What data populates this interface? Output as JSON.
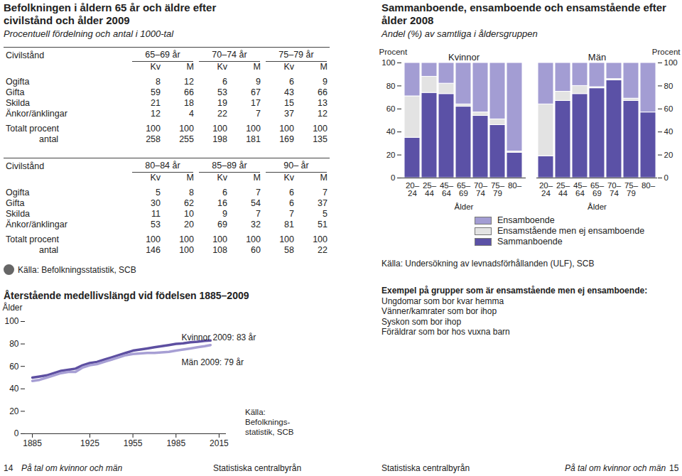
{
  "table": {
    "title": "Befolkningen i åldern 65 år och äldre efter civilstånd och ålder 2009",
    "subtitle": "Procentuell fördelning och antal i 1000-tal",
    "columns": [
      "Kv",
      "M"
    ],
    "blocks": [
      {
        "header_label": "Civilstånd",
        "groups": [
          "65–69 år",
          "70–74 år",
          "75–79 år"
        ],
        "rows": [
          {
            "label": "Ogifta",
            "values": [
              8,
              12,
              6,
              9,
              6,
              9
            ]
          },
          {
            "label": "Gifta",
            "values": [
              59,
              66,
              53,
              67,
              43,
              66
            ]
          },
          {
            "label": "Skilda",
            "values": [
              21,
              18,
              19,
              17,
              15,
              13
            ]
          },
          {
            "label": "Änkor/änklingar",
            "values": [
              12,
              4,
              22,
              7,
              37,
              12
            ]
          },
          {
            "label": "Totalt procent",
            "values": [
              100,
              100,
              100,
              100,
              100,
              100
            ]
          },
          {
            "label": "antal",
            "values": [
              258,
              255,
              198,
              181,
              169,
              135
            ]
          }
        ]
      },
      {
        "header_label": "Civilstånd",
        "groups": [
          "80–84 år",
          "85–89 år",
          "90– år"
        ],
        "rows": [
          {
            "label": "Ogifta",
            "values": [
              5,
              8,
              6,
              7,
              6,
              7
            ]
          },
          {
            "label": "Gifta",
            "values": [
              30,
              62,
              16,
              54,
              6,
              37
            ]
          },
          {
            "label": "Skilda",
            "values": [
              11,
              10,
              9,
              7,
              7,
              5
            ]
          },
          {
            "label": "Änkor/änklingar",
            "values": [
              53,
              20,
              69,
              32,
              81,
              51
            ]
          },
          {
            "label": "Totalt procent",
            "values": [
              100,
              100,
              100,
              100,
              100,
              100
            ]
          },
          {
            "label": "antal",
            "values": [
              146,
              100,
              108,
              60,
              58,
              22
            ]
          }
        ]
      }
    ],
    "source": "Källa: Befolkningsstatistik, SCB"
  },
  "chart_data": [
    {
      "type": "line",
      "title": "Återstående medellivslängd vid födelsen 1885–2009",
      "y_label": "Ålder",
      "x": [
        1885,
        1890,
        1895,
        1900,
        1905,
        1910,
        1915,
        1920,
        1925,
        1930,
        1935,
        1940,
        1945,
        1950,
        1955,
        1960,
        1965,
        1970,
        1975,
        1980,
        1985,
        1990,
        1995,
        2000,
        2005,
        2009
      ],
      "series": [
        {
          "name": "Kvinnor",
          "color": "#5d4fa1",
          "annotation": "Kvinnor 2009: 83 år",
          "values": [
            50,
            51,
            52,
            54,
            56,
            57,
            58,
            61,
            63,
            64,
            66,
            68,
            70,
            72,
            74,
            75,
            76,
            77,
            78,
            79,
            80,
            80.5,
            81.5,
            82,
            82.8,
            83
          ]
        },
        {
          "name": "Män",
          "color": "#a79fd4",
          "annotation": "Män 2009: 79 år",
          "values": [
            47,
            48,
            50,
            52,
            54,
            55,
            55,
            59,
            61,
            62,
            64,
            66,
            68,
            70,
            71,
            71.5,
            72,
            72,
            72.5,
            73,
            74,
            75,
            76,
            77,
            78,
            79
          ]
        }
      ],
      "xlim": [
        1880,
        2020
      ],
      "xticks": [
        1885,
        1925,
        1955,
        1985,
        2015
      ],
      "ylim": [
        0,
        100
      ],
      "yticks": [
        0,
        20,
        40,
        60,
        80,
        100
      ],
      "grid": false,
      "source": [
        "Källa:",
        "Befolknings-",
        "statistik, SCB"
      ]
    },
    {
      "type": "bar",
      "stacked": true,
      "title": "Sammanboende, ensamboende och ensamstående efter ålder 2008",
      "subtitle": "Andel (%) av samtliga i åldersgruppen",
      "categories": [
        "20–24",
        "25–44",
        "45–64",
        "65–69",
        "70–74",
        "75–79",
        "80–"
      ],
      "x_label": "Ålder",
      "y_label": "Procent",
      "ylim": [
        0,
        100
      ],
      "yticks": [
        0,
        20,
        40,
        60,
        80,
        100
      ],
      "grid": false,
      "legend": "bottom",
      "series": [
        {
          "name": "Sammanboende",
          "color": "#5b51a6"
        },
        {
          "name": "Ensamstående men ej ensamboende",
          "color": "#e3e3e3"
        },
        {
          "name": "Ensamboende",
          "color": "#a39dd3"
        }
      ],
      "panels": [
        {
          "title": "Kvinnor",
          "values": [
            [
              35,
              74,
              73,
              62,
              54,
              46,
              22
            ],
            [
              36,
              14,
              9,
              2,
              3,
              5,
              1
            ],
            [
              29,
              12,
              18,
              36,
              43,
              49,
              77
            ]
          ]
        },
        {
          "title": "Män",
          "values": [
            [
              19,
              67,
              73,
              78,
              85,
              67,
              57
            ],
            [
              45,
              8,
              7,
              1,
              1,
              2,
              0
            ],
            [
              36,
              25,
              20,
              21,
              14,
              31,
              43
            ]
          ]
        }
      ],
      "source": "Källa: Undersökning av levnadsförhållanden (ULF), SCB"
    }
  ],
  "note": {
    "title": "Exempel på grupper som är ensamstående men ej ensamboende:",
    "items": [
      "Ungdomar som bor kvar hemma",
      "Vänner/kamrater som bor ihop",
      "Syskon som bor ihop",
      "Föräldrar som bor hos vuxna barn"
    ]
  },
  "footer": [
    {
      "page_number": 14,
      "publication": "På tal om kvinnor och män",
      "publisher": "Statistiska centralbyrån"
    },
    {
      "page_number": 15,
      "publication": "På tal om kvinnor och män",
      "publisher": "Statistiska centralbyrån"
    }
  ]
}
